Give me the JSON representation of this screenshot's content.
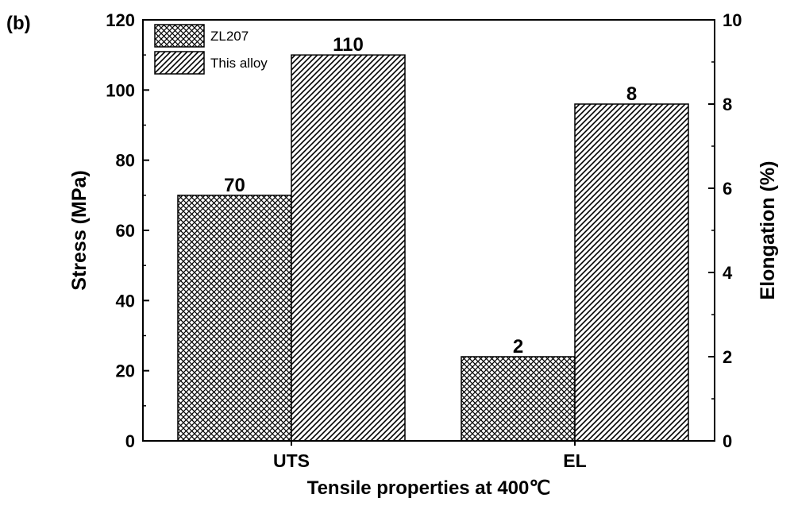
{
  "panel_label": "(b)",
  "chart_data": {
    "type": "bar",
    "title": "",
    "xlabel": "Tensile properties at 400℃",
    "ylabel": "Stress (MPa)",
    "ylabel_right": "Elongation (%)",
    "categories": [
      "UTS",
      "EL"
    ],
    "category_axis": [
      "left",
      "right"
    ],
    "ylim": [
      0,
      120
    ],
    "ylim_right": [
      0,
      10
    ],
    "yticks": [
      0,
      20,
      40,
      60,
      80,
      100,
      120
    ],
    "yticks_right": [
      0,
      2,
      4,
      6,
      8,
      10
    ],
    "series": [
      {
        "name": "ZL207",
        "values": [
          70,
          2
        ],
        "labels": [
          "70",
          "2"
        ],
        "pattern": "crosshatch"
      },
      {
        "name": "This alloy",
        "values": [
          110,
          8
        ],
        "labels": [
          "110",
          "8"
        ],
        "pattern": "diagonal"
      }
    ],
    "legend": {
      "position": "top-left"
    },
    "grid": false
  }
}
